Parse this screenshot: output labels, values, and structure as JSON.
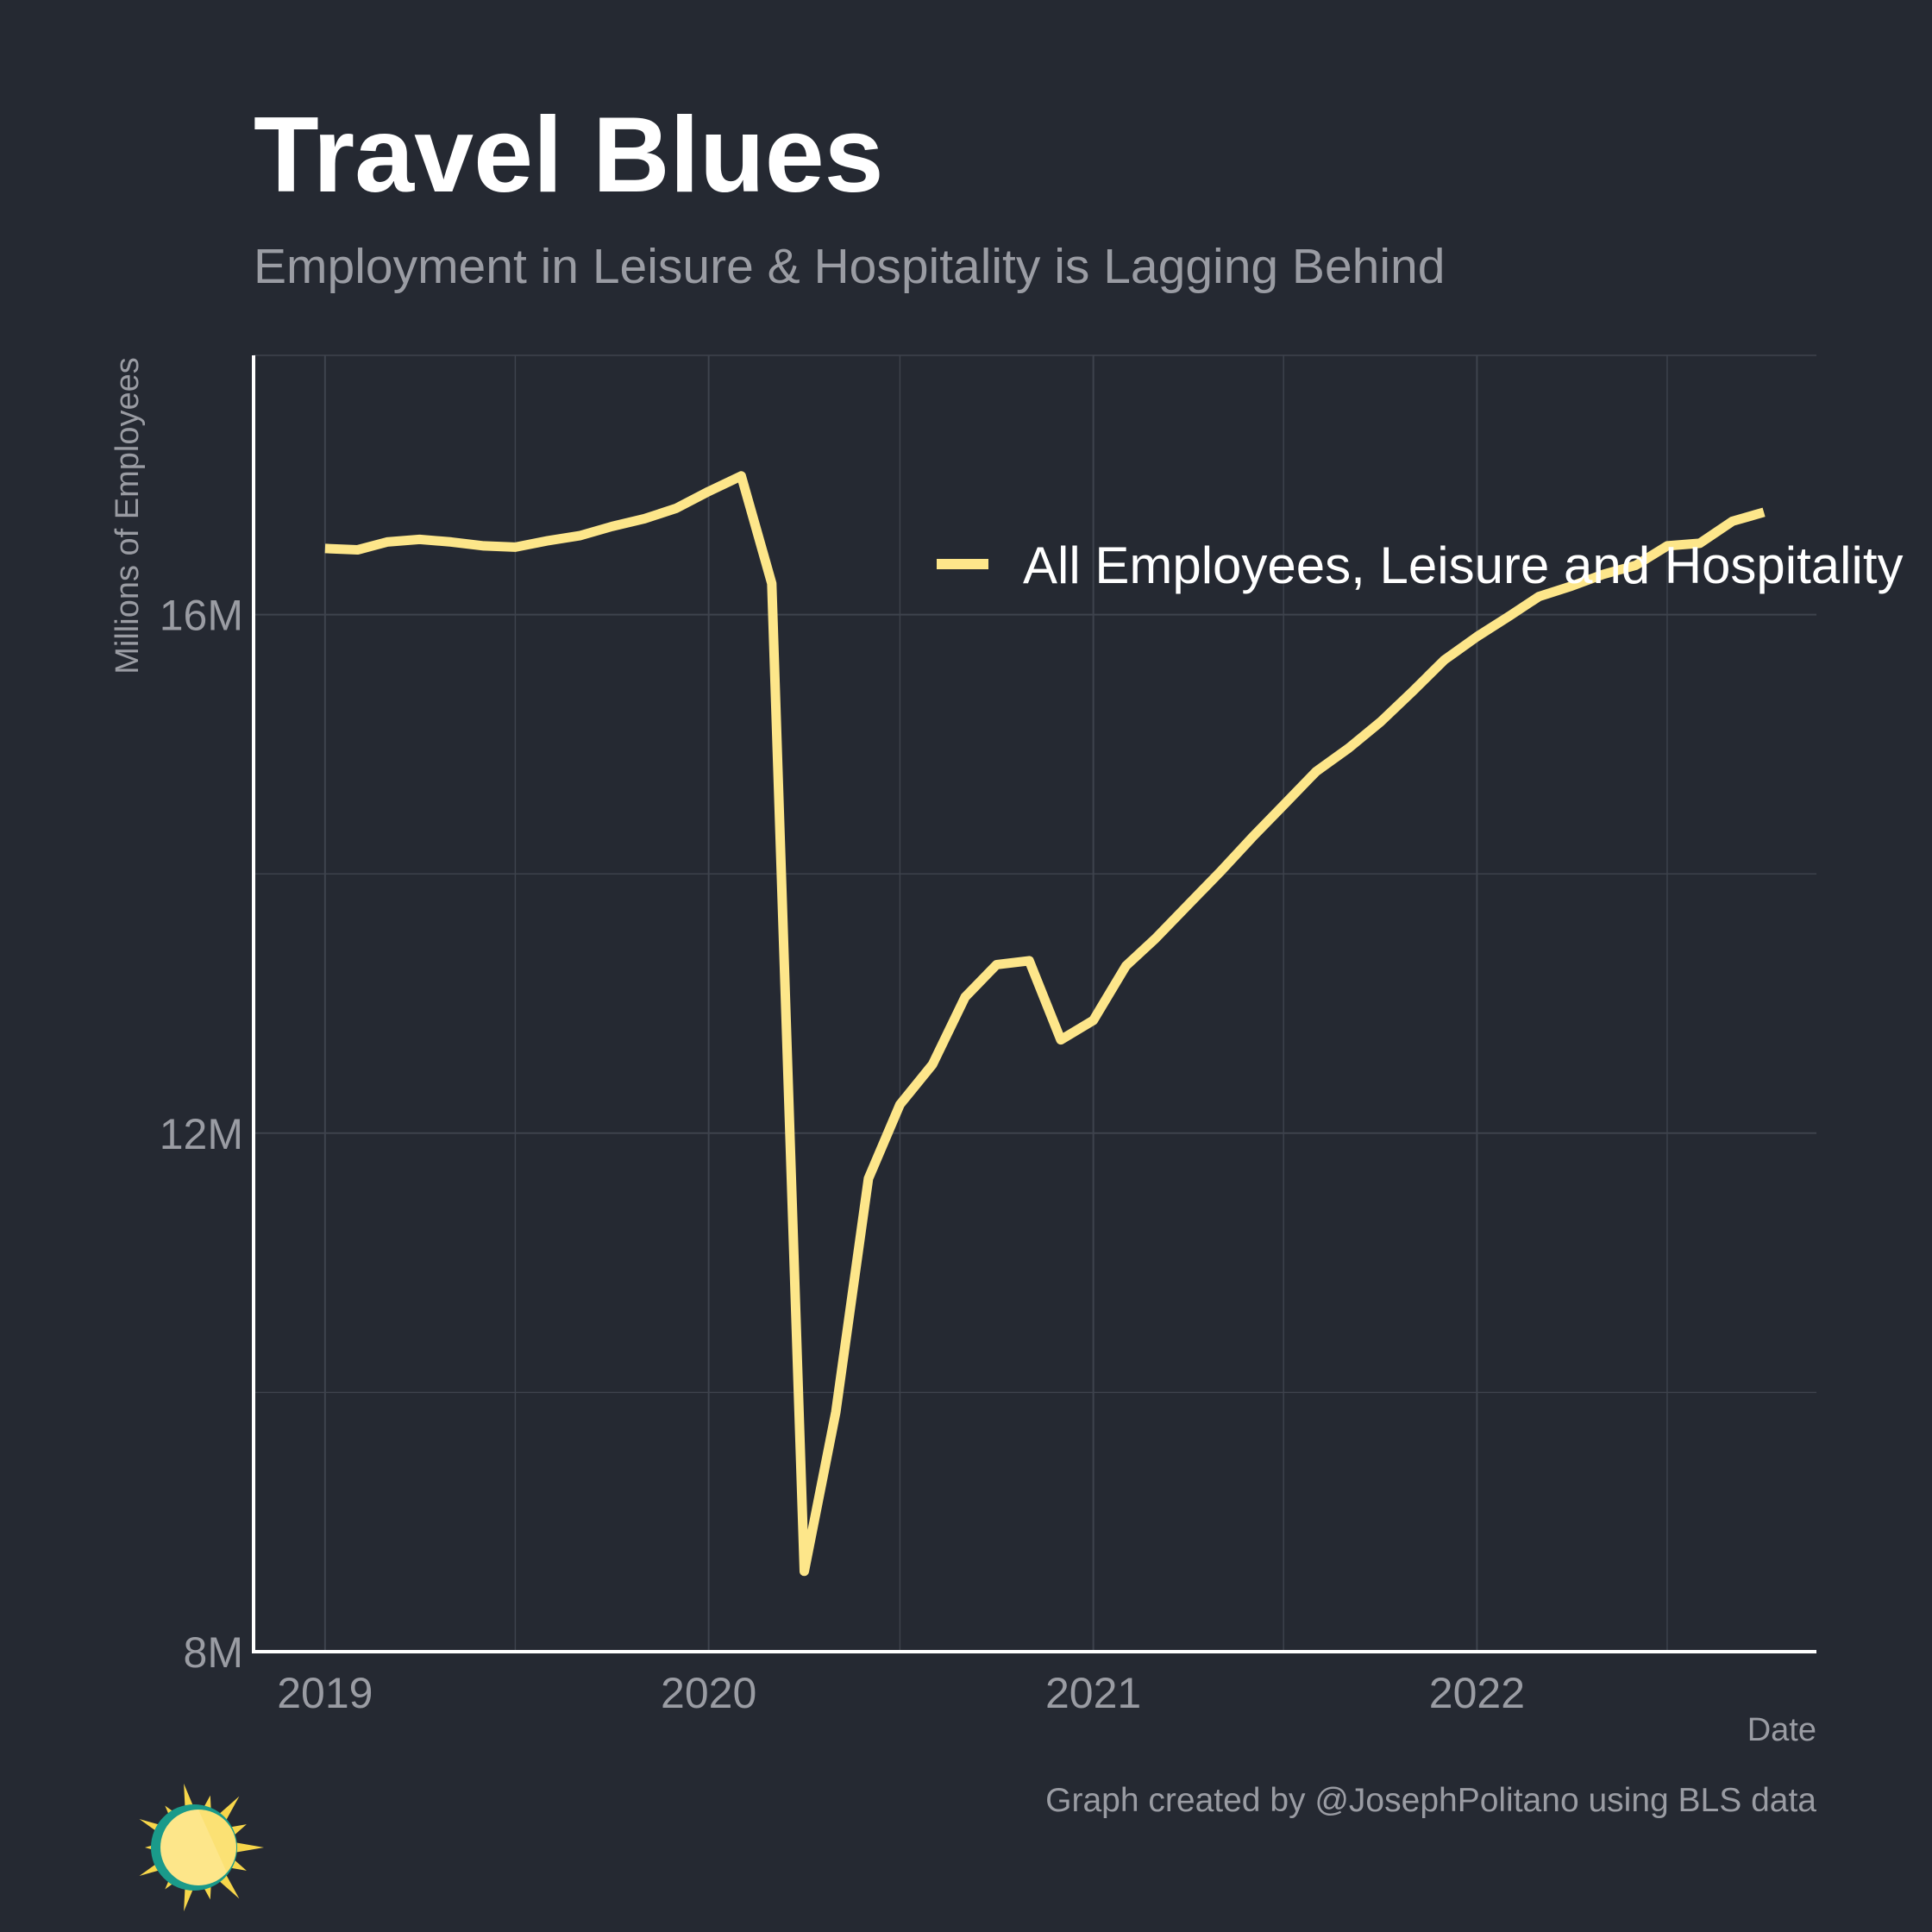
{
  "chart_data": {
    "type": "line",
    "title": "Travel Blues",
    "subtitle": "Employment in Leisure & Hospitality is Lagging Behind",
    "xlabel": "Date",
    "ylabel": "Millions of Employees",
    "caption": "Graph created by @JosephPolitano using BLS data",
    "xlim": [
      "2018-10-25",
      "2022-11-20"
    ],
    "ylim": [
      8,
      18
    ],
    "x_ticks": [
      {
        "value": "2019-01-01",
        "label": "2019"
      },
      {
        "value": "2020-01-01",
        "label": "2020"
      },
      {
        "value": "2021-01-01",
        "label": "2021"
      },
      {
        "value": "2022-01-01",
        "label": "2022"
      }
    ],
    "y_ticks": [
      {
        "value": 8,
        "label": "8M"
      },
      {
        "value": 12,
        "label": "12M"
      },
      {
        "value": 16,
        "label": "16M"
      }
    ],
    "y_minor_ticks": [
      10,
      14,
      18
    ],
    "grid": true,
    "legend_position": "top-right",
    "series": [
      {
        "name": "All Employees, Leisure and Hospitality",
        "color": "#fde68a",
        "x": [
          "2019-01-01",
          "2019-02-01",
          "2019-03-01",
          "2019-04-01",
          "2019-05-01",
          "2019-06-01",
          "2019-07-01",
          "2019-08-01",
          "2019-09-01",
          "2019-10-01",
          "2019-11-01",
          "2019-12-01",
          "2020-01-01",
          "2020-02-01",
          "2020-03-01",
          "2020-04-01",
          "2020-05-01",
          "2020-06-01",
          "2020-07-01",
          "2020-08-01",
          "2020-09-01",
          "2020-10-01",
          "2020-11-01",
          "2020-12-01",
          "2021-01-01",
          "2021-02-01",
          "2021-03-01",
          "2021-04-01",
          "2021-05-01",
          "2021-06-01",
          "2021-07-01",
          "2021-08-01",
          "2021-09-01",
          "2021-10-01",
          "2021-11-01",
          "2021-12-01",
          "2022-01-01",
          "2022-02-01",
          "2022-03-01",
          "2022-04-01",
          "2022-05-01",
          "2022-06-01",
          "2022-07-01",
          "2022-08-01",
          "2022-09-01",
          "2022-10-01"
        ],
        "values": [
          16.51,
          16.5,
          16.56,
          16.58,
          16.56,
          16.53,
          16.52,
          16.57,
          16.61,
          16.68,
          16.74,
          16.82,
          16.95,
          17.07,
          16.24,
          8.62,
          9.85,
          11.65,
          12.22,
          12.53,
          13.05,
          13.3,
          13.33,
          12.72,
          12.87,
          13.29,
          13.5,
          13.76,
          14.01,
          14.28,
          14.53,
          14.79,
          14.97,
          15.17,
          15.41,
          15.65,
          15.83,
          15.99,
          16.14,
          16.22,
          16.31,
          16.38,
          16.53,
          16.55,
          16.72,
          16.79
        ]
      }
    ]
  },
  "logo_colors": {
    "sun": "#fde68a",
    "ring": "#1a9a8a",
    "rays": "#f7d64a"
  }
}
